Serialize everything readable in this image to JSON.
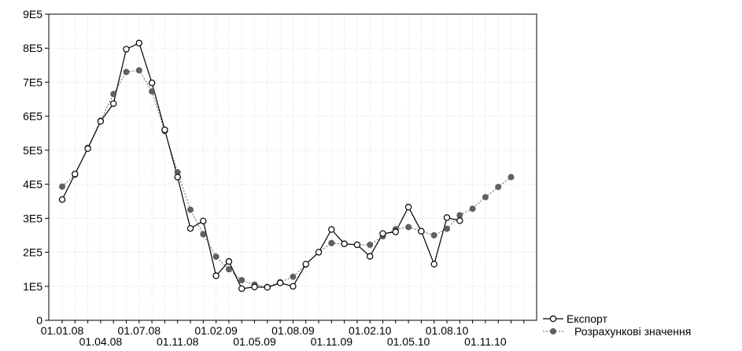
{
  "chart_data": {
    "type": "line",
    "title": "",
    "xlabel": "",
    "ylabel": "",
    "ylim": [
      0,
      900000
    ],
    "y_ticks": [
      {
        "value": 0,
        "label": "0"
      },
      {
        "value": 100000,
        "label": "1E5"
      },
      {
        "value": 200000,
        "label": "2E5"
      },
      {
        "value": 300000,
        "label": "3E5"
      },
      {
        "value": 400000,
        "label": "4E5"
      },
      {
        "value": 500000,
        "label": "5E5"
      },
      {
        "value": 600000,
        "label": "6E5"
      },
      {
        "value": 700000,
        "label": "7E5"
      },
      {
        "value": 800000,
        "label": "8E5"
      },
      {
        "value": 900000,
        "label": "9E5"
      }
    ],
    "x_count": 37,
    "x_ticks": [
      {
        "index": 0,
        "label": "01.01.08",
        "row": 0
      },
      {
        "index": 3,
        "label": "01.04.08",
        "row": 1
      },
      {
        "index": 6,
        "label": "01.07.08",
        "row": 0
      },
      {
        "index": 9,
        "label": "01.11.08",
        "row": 1
      },
      {
        "index": 12,
        "label": "01.02.09",
        "row": 0
      },
      {
        "index": 15,
        "label": "01.05.09",
        "row": 1
      },
      {
        "index": 18,
        "label": "01.08.09",
        "row": 0
      },
      {
        "index": 21,
        "label": "01.11.09",
        "row": 1
      },
      {
        "index": 24,
        "label": "01.02.10",
        "row": 0
      },
      {
        "index": 27,
        "label": "01.05.10",
        "row": 1
      },
      {
        "index": 30,
        "label": "01.08.10",
        "row": 0
      },
      {
        "index": 33,
        "label": "01.11.10",
        "row": 1
      }
    ],
    "grid": true,
    "legend_position": "bottom-right",
    "series": [
      {
        "name": "Експорт",
        "style": "solid-line-open-circle",
        "color": "#000000",
        "values": [
          355000,
          430000,
          505000,
          585000,
          637000,
          797000,
          815000,
          698000,
          560000,
          421000,
          270000,
          292000,
          131000,
          173000,
          93000,
          98000,
          97000,
          110000,
          100000,
          165000,
          200000,
          267000,
          225000,
          222000,
          188000,
          255000,
          260000,
          333000,
          262000,
          165000,
          302000,
          293000,
          null,
          null,
          null,
          null,
          null
        ]
      },
      {
        "name": "Розрахункові значення",
        "style": "dotted-line-filled-circle",
        "color": "#606060",
        "values": [
          393000,
          428000,
          507000,
          587000,
          665000,
          730000,
          735000,
          673000,
          556000,
          435000,
          325000,
          253000,
          187000,
          150000,
          118000,
          105000,
          98000,
          112000,
          128000,
          164000,
          200000,
          227000,
          225000,
          222000,
          222000,
          247000,
          268000,
          274000,
          262000,
          250000,
          269000,
          309000,
          328000,
          362000,
          392000,
          421000,
          null
        ]
      }
    ]
  }
}
